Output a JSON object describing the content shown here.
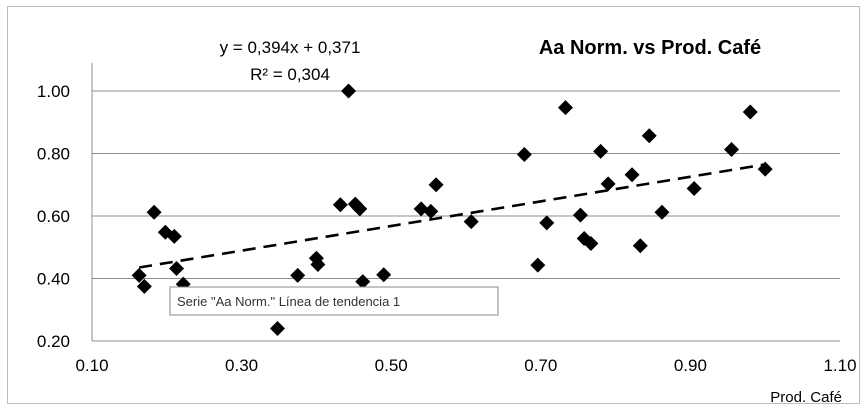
{
  "chart_data": {
    "type": "scatter",
    "title": "Aa Norm. vs Prod. Café",
    "xlabel": "Prod. Café",
    "ylabel": "",
    "xlim": [
      0.1,
      1.1
    ],
    "ylim": [
      0.2,
      1.0
    ],
    "xticks": [
      "0.10",
      "0.30",
      "0.50",
      "0.70",
      "0.90",
      "1.10"
    ],
    "yticks": [
      "0.20",
      "0.40",
      "0.60",
      "0.80",
      "1.00"
    ],
    "grid": "horizontal",
    "marker_color": "#000000",
    "series": [
      {
        "points": [
          [
            0.163,
            0.41
          ],
          [
            0.17,
            0.375
          ],
          [
            0.183,
            0.612
          ],
          [
            0.198,
            0.548
          ],
          [
            0.21,
            0.535
          ],
          [
            0.213,
            0.432
          ],
          [
            0.222,
            0.382
          ],
          [
            0.348,
            0.24
          ],
          [
            0.375,
            0.41
          ],
          [
            0.4,
            0.465
          ],
          [
            0.402,
            0.445
          ],
          [
            0.432,
            0.636
          ],
          [
            0.443,
            1.0
          ],
          [
            0.452,
            0.638
          ],
          [
            0.458,
            0.623
          ],
          [
            0.462,
            0.39
          ],
          [
            0.49,
            0.412
          ],
          [
            0.54,
            0.623
          ],
          [
            0.553,
            0.615
          ],
          [
            0.56,
            0.7
          ],
          [
            0.607,
            0.582
          ],
          [
            0.678,
            0.797
          ],
          [
            0.696,
            0.443
          ],
          [
            0.708,
            0.578
          ],
          [
            0.733,
            0.947
          ],
          [
            0.753,
            0.603
          ],
          [
            0.758,
            0.528
          ],
          [
            0.767,
            0.512
          ],
          [
            0.78,
            0.807
          ],
          [
            0.79,
            0.703
          ],
          [
            0.822,
            0.732
          ],
          [
            0.833,
            0.505
          ],
          [
            0.845,
            0.857
          ],
          [
            0.862,
            0.612
          ],
          [
            0.905,
            0.688
          ],
          [
            0.955,
            0.813
          ],
          [
            0.98,
            0.933
          ],
          [
            1.0,
            0.75
          ]
        ]
      }
    ],
    "trendline": {
      "label": "Serie \"Aa Norm.\" Línea de tendencia 1",
      "equation": "y = 0,394x + 0,371",
      "r2": "R² = 0,304",
      "slope": 0.394,
      "intercept": 0.371,
      "x_range": [
        0.163,
        1.0
      ],
      "style": "dashed"
    }
  }
}
